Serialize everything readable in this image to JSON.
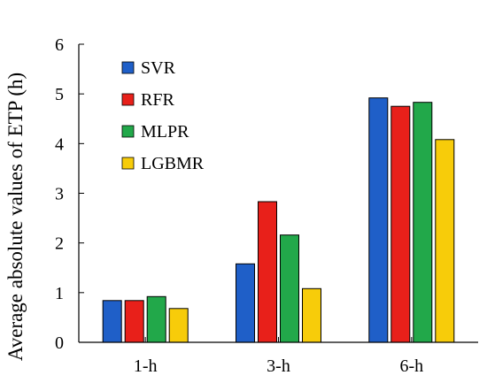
{
  "chart_data": {
    "type": "bar",
    "title": "",
    "xlabel": "",
    "ylabel": "Average absolute values of ETP (h)",
    "categories": [
      "1-h",
      "3-h",
      "6-h"
    ],
    "ylim": [
      0,
      6
    ],
    "yticks": [
      "0",
      "1",
      "2",
      "3",
      "4",
      "5",
      "6"
    ],
    "grid": false,
    "legend_position": "top-left",
    "series": [
      {
        "name": "SVR",
        "color": "#1f5fc8",
        "values": [
          0.84,
          1.58,
          4.92
        ]
      },
      {
        "name": "RFR",
        "color": "#e8201a",
        "values": [
          0.84,
          2.83,
          4.75
        ]
      },
      {
        "name": "MLPR",
        "color": "#22a84a",
        "values": [
          0.92,
          2.16,
          4.83
        ]
      },
      {
        "name": "LGBMR",
        "color": "#f7cc0a",
        "values": [
          0.68,
          1.08,
          4.08
        ]
      }
    ]
  }
}
